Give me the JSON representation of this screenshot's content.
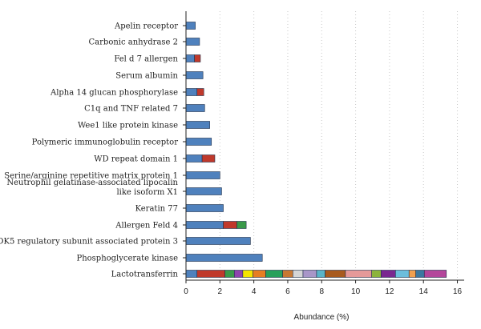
{
  "chart_data": {
    "type": "bar",
    "orientation": "horizontal",
    "stacked": true,
    "title": "",
    "xlabel": "Abundance (%)",
    "ylabel": "",
    "xlim": [
      0,
      16.4
    ],
    "xticks": [
      0,
      2,
      4,
      6,
      8,
      10,
      12,
      14,
      16
    ],
    "grid": "vertical-dotted",
    "legend": "none",
    "categories": [
      {
        "name": "Apelin receptor",
        "segments": [
          {
            "value": 0.55,
            "color": "#4f81bd"
          }
        ]
      },
      {
        "name": "Carbonic anhydrase 2",
        "segments": [
          {
            "value": 0.8,
            "color": "#4f81bd"
          }
        ]
      },
      {
        "name": "Fel d 7 allergen",
        "segments": [
          {
            "value": 0.5,
            "color": "#4f81bd"
          },
          {
            "value": 0.35,
            "color": "#c0392b"
          }
        ]
      },
      {
        "name": "Serum albumin",
        "segments": [
          {
            "value": 1.0,
            "color": "#4f81bd"
          }
        ]
      },
      {
        "name": "Alpha 14 glucan phosphorylase",
        "segments": [
          {
            "value": 0.65,
            "color": "#4f81bd"
          },
          {
            "value": 0.4,
            "color": "#c0392b"
          }
        ]
      },
      {
        "name": "C1q and TNF related 7",
        "segments": [
          {
            "value": 1.1,
            "color": "#4f81bd"
          }
        ]
      },
      {
        "name": "Wee1 like protein kinase",
        "segments": [
          {
            "value": 1.4,
            "color": "#4f81bd"
          }
        ]
      },
      {
        "name": "Polymeric immunoglobulin receptor",
        "segments": [
          {
            "value": 1.5,
            "color": "#4f81bd"
          }
        ]
      },
      {
        "name": "WD repeat domain 1",
        "segments": [
          {
            "value": 0.95,
            "color": "#4f81bd"
          },
          {
            "value": 0.75,
            "color": "#c0392b"
          }
        ]
      },
      {
        "name": "Serine/arginine repetitive matrix protein 1",
        "segments": [
          {
            "value": 2.0,
            "color": "#4f81bd"
          }
        ]
      },
      {
        "name": "Neutrophil gelatinase-associated lipocalin like isoform X1",
        "lines": [
          "Neutrophil gelatinase-associated lipocalin",
          "like isoform X1"
        ],
        "segments": [
          {
            "value": 2.1,
            "color": "#4f81bd"
          }
        ]
      },
      {
        "name": "Keratin 77",
        "segments": [
          {
            "value": 2.2,
            "color": "#4f81bd"
          }
        ]
      },
      {
        "name": "Allergen Feld 4",
        "segments": [
          {
            "value": 2.2,
            "color": "#4f81bd"
          },
          {
            "value": 0.8,
            "color": "#c0392b"
          },
          {
            "value": 0.55,
            "color": "#3a9a4a"
          }
        ]
      },
      {
        "name": "CDK5 regulatory subunit associated protein 3",
        "segments": [
          {
            "value": 3.8,
            "color": "#4f81bd"
          }
        ]
      },
      {
        "name": "Phosphoglycerate kinase",
        "segments": [
          {
            "value": 4.5,
            "color": "#4f81bd"
          }
        ]
      },
      {
        "name": "Lactotransferrin",
        "segments": [
          {
            "value": 0.65,
            "color": "#4f81bd"
          },
          {
            "value": 1.65,
            "color": "#c0392b"
          },
          {
            "value": 0.55,
            "color": "#3a9a4a"
          },
          {
            "value": 0.5,
            "color": "#8e44ad"
          },
          {
            "value": 0.6,
            "color": "#f5e400"
          },
          {
            "value": 0.75,
            "color": "#e67e22"
          },
          {
            "value": 1.0,
            "color": "#27a05a"
          },
          {
            "value": 0.6,
            "color": "#c87832"
          },
          {
            "value": 0.6,
            "color": "#d5d5d5"
          },
          {
            "value": 0.8,
            "color": "#a896c8"
          },
          {
            "value": 0.5,
            "color": "#5ab4c8"
          },
          {
            "value": 1.2,
            "color": "#a85a1e"
          },
          {
            "value": 1.55,
            "color": "#e59999"
          },
          {
            "value": 0.55,
            "color": "#8cb43c"
          },
          {
            "value": 0.85,
            "color": "#7a2890"
          },
          {
            "value": 0.8,
            "color": "#6cbedc"
          },
          {
            "value": 0.4,
            "color": "#f0a050"
          },
          {
            "value": 0.5,
            "color": "#3c78a0"
          },
          {
            "value": 1.3,
            "color": "#b4469b"
          }
        ]
      }
    ]
  }
}
